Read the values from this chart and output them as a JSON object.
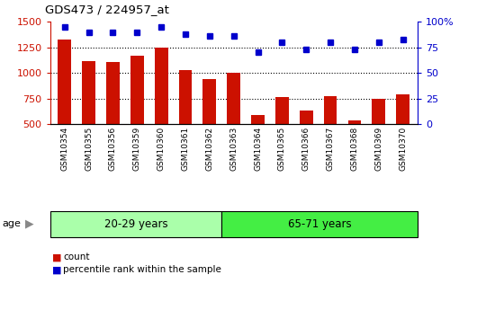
{
  "title": "GDS473 / 224957_at",
  "categories": [
    "GSM10354",
    "GSM10355",
    "GSM10356",
    "GSM10359",
    "GSM10360",
    "GSM10361",
    "GSM10362",
    "GSM10363",
    "GSM10364",
    "GSM10365",
    "GSM10366",
    "GSM10367",
    "GSM10368",
    "GSM10369",
    "GSM10370"
  ],
  "counts": [
    1330,
    1115,
    1105,
    1165,
    1250,
    1030,
    940,
    1000,
    590,
    760,
    630,
    775,
    535,
    745,
    790
  ],
  "percentiles": [
    95,
    90,
    90,
    90,
    95,
    88,
    86,
    86,
    70,
    80,
    73,
    80,
    73,
    80,
    83
  ],
  "group_labels": [
    "20-29 years",
    "65-71 years"
  ],
  "group_counts": [
    7,
    8
  ],
  "bar_color": "#cc1100",
  "dot_color": "#0000cc",
  "group1_color": "#aaffaa",
  "group2_color": "#44ee44",
  "bg_color": "#c8c8c8",
  "ylim_left": [
    500,
    1500
  ],
  "ylim_right": [
    0,
    100
  ],
  "yticks_left": [
    500,
    750,
    1000,
    1250,
    1500
  ],
  "yticks_right": [
    0,
    25,
    50,
    75,
    100
  ],
  "legend_count_label": "count",
  "legend_pct_label": "percentile rank within the sample",
  "age_label": "age"
}
